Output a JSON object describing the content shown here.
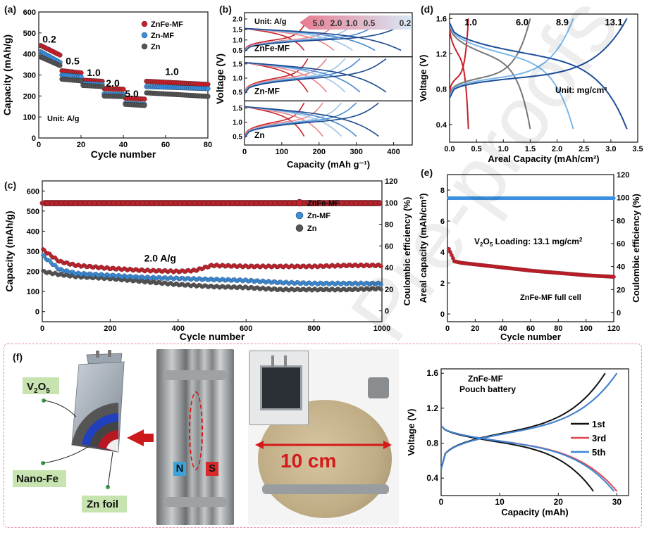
{
  "panels": {
    "a": {
      "letter": "(a)",
      "chart_data": {
        "type": "scatter",
        "xlabel": "Cycle number",
        "ylabel": "Capacity (mAh/g)",
        "xlim": [
          0,
          80
        ],
        "ylim": [
          0,
          600
        ],
        "xticks": [
          0,
          20,
          40,
          60,
          80
        ],
        "yticks": [
          0,
          100,
          200,
          300,
          400,
          500,
          600
        ],
        "unit_note": "Unit: A/g",
        "rate_labels": [
          {
            "text": "0.2",
            "x": 5,
            "y": 455
          },
          {
            "text": "0.5",
            "x": 16,
            "y": 350
          },
          {
            "text": "1.0",
            "x": 26,
            "y": 295
          },
          {
            "text": "2.0",
            "x": 35,
            "y": 245
          },
          {
            "text": "5.0",
            "x": 44,
            "y": 195
          },
          {
            "text": "1.0",
            "x": 63,
            "y": 300
          }
        ],
        "series": [
          {
            "name": "ZnFe-MF",
            "color": "#c8202a",
            "segments": [
              {
                "x0": 1,
                "x1": 10,
                "y0": 440,
                "y1": 395
              },
              {
                "x0": 11,
                "x1": 20,
                "y0": 320,
                "y1": 310
              },
              {
                "x0": 21,
                "x1": 30,
                "y0": 275,
                "y1": 270
              },
              {
                "x0": 31,
                "x1": 40,
                "y0": 235,
                "y1": 232
              },
              {
                "x0": 41,
                "x1": 50,
                "y0": 190,
                "y1": 185
              },
              {
                "x0": 51,
                "x1": 80,
                "y0": 270,
                "y1": 255
              }
            ]
          },
          {
            "name": "Zn-MF",
            "color": "#3a8fe0",
            "segments": [
              {
                "x0": 1,
                "x1": 10,
                "y0": 410,
                "y1": 360
              },
              {
                "x0": 11,
                "x1": 20,
                "y0": 300,
                "y1": 292
              },
              {
                "x0": 21,
                "x1": 30,
                "y0": 260,
                "y1": 255
              },
              {
                "x0": 31,
                "x1": 40,
                "y0": 210,
                "y1": 207
              },
              {
                "x0": 41,
                "x1": 50,
                "y0": 165,
                "y1": 160
              },
              {
                "x0": 51,
                "x1": 80,
                "y0": 245,
                "y1": 235
              }
            ]
          },
          {
            "name": "Zn",
            "color": "#555555",
            "segments": [
              {
                "x0": 1,
                "x1": 10,
                "y0": 385,
                "y1": 345
              },
              {
                "x0": 11,
                "x1": 20,
                "y0": 280,
                "y1": 272
              },
              {
                "x0": 21,
                "x1": 30,
                "y0": 250,
                "y1": 245
              },
              {
                "x0": 31,
                "x1": 40,
                "y0": 200,
                "y1": 197
              },
              {
                "x0": 41,
                "x1": 50,
                "y0": 160,
                "y1": 155
              },
              {
                "x0": 51,
                "x1": 80,
                "y0": 215,
                "y1": 198
              }
            ]
          }
        ]
      }
    },
    "b": {
      "letter": "(b)",
      "chart_data": {
        "type": "line",
        "xlabel": "Capacity (mAh g⁻¹)",
        "ylabel": "Voltage (V)",
        "xlim": [
          0,
          450
        ],
        "ylim": [
          0.2,
          2.3
        ],
        "xticks": [
          0,
          100,
          200,
          300,
          400
        ],
        "yticks_top": [
          0.5,
          1.0,
          1.5,
          2.0
        ],
        "yticks_mid": [
          0.5,
          1.0,
          1.5
        ],
        "yticks_bot": [
          0.5,
          1.0,
          1.5
        ],
        "unit_note": "Unit: A/g",
        "rates": [
          "5.0",
          "2.0",
          "1.0",
          "0.5",
          "0.2"
        ],
        "subplots": [
          {
            "name": "ZnFe-MF",
            "caps": [
              160,
              240,
              290,
              350,
              420
            ]
          },
          {
            "name": "Zn-MF",
            "caps": [
              170,
              220,
              270,
              310,
              380
            ]
          },
          {
            "name": "Zn",
            "caps": [
              160,
              210,
              260,
              300,
              360
            ]
          }
        ],
        "rate_colors": [
          "#c8202a",
          "#e8868a",
          "#9fc4e6",
          "#4a8ad0",
          "#1c4a90"
        ]
      }
    },
    "c": {
      "letter": "(c)",
      "chart_data": {
        "type": "scatter",
        "xlabel": "Cycle number",
        "ylabel": "Capacity (mAh/g)",
        "y2label": "Coulombic efficiency (%)",
        "xlim": [
          0,
          1000
        ],
        "ylim": [
          -50,
          650
        ],
        "y2lim": [
          -10,
          120
        ],
        "xticks": [
          0,
          200,
          400,
          600,
          800,
          1000
        ],
        "yticks": [
          0,
          100,
          200,
          300,
          400,
          500,
          600
        ],
        "y2ticks": [
          0,
          20,
          40,
          60,
          80,
          100,
          120
        ],
        "annotation": "2.0 A/g",
        "efficiency": 99.5,
        "series": [
          {
            "name": "ZnFe-MF",
            "color": "#c8202a",
            "points": [
              [
                0,
                310
              ],
              [
                50,
                250
              ],
              [
                100,
                230
              ],
              [
                200,
                215
              ],
              [
                300,
                205
              ],
              [
                400,
                200
              ],
              [
                450,
                205
              ],
              [
                500,
                230
              ],
              [
                600,
                225
              ],
              [
                700,
                225
              ],
              [
                800,
                225
              ],
              [
                900,
                230
              ],
              [
                1000,
                230
              ]
            ]
          },
          {
            "name": "Zn-MF",
            "color": "#3a8fe0",
            "points": [
              [
                0,
                280
              ],
              [
                50,
                210
              ],
              [
                100,
                190
              ],
              [
                200,
                180
              ],
              [
                300,
                170
              ],
              [
                400,
                165
              ],
              [
                500,
                160
              ],
              [
                600,
                155
              ],
              [
                700,
                145
              ],
              [
                800,
                140
              ],
              [
                900,
                140
              ],
              [
                1000,
                140
              ]
            ]
          },
          {
            "name": "Zn",
            "color": "#555555",
            "points": [
              [
                0,
                200
              ],
              [
                50,
                185
              ],
              [
                100,
                175
              ],
              [
                200,
                165
              ],
              [
                300,
                150
              ],
              [
                400,
                135
              ],
              [
                500,
                125
              ],
              [
                600,
                120
              ],
              [
                700,
                110
              ],
              [
                800,
                110
              ],
              [
                900,
                110
              ],
              [
                1000,
                115
              ]
            ]
          }
        ]
      }
    },
    "d": {
      "letter": "(d)",
      "chart_data": {
        "type": "line",
        "xlabel": "Areal Capacity (mAh/cm²)",
        "ylabel": "Voltage (V)",
        "xlim": [
          0,
          3.5
        ],
        "ylim": [
          0.2,
          1.65
        ],
        "xticks": [
          0.0,
          0.5,
          1.0,
          1.5,
          2.0,
          2.5,
          3.0,
          3.5
        ],
        "yticks": [
          0.4,
          0.8,
          1.2,
          1.6
        ],
        "unit_note": "Unit: mg/cm²",
        "series": [
          {
            "name": "1.0",
            "color": "#c8202a",
            "cap": 0.35
          },
          {
            "name": "6.0",
            "color": "#777777",
            "cap": 1.5
          },
          {
            "name": "8.9",
            "color": "#7ab8ea",
            "cap": 2.3
          },
          {
            "name": "13.1",
            "color": "#1f4e9a",
            "cap": 3.3
          }
        ]
      }
    },
    "e": {
      "letter": "(e)",
      "chart_data": {
        "type": "scatter",
        "xlabel": "Cycle number",
        "ylabel": "Areal capacity (mAh/cm²)",
        "y2label": "Coulombic efficiency (%)",
        "xlim": [
          0,
          120
        ],
        "ylim": [
          -0.5,
          9
        ],
        "y2lim": [
          -8,
          120
        ],
        "xticks": [
          0,
          20,
          40,
          60,
          80,
          100,
          120
        ],
        "yticks": [
          0,
          2,
          4,
          6,
          8
        ],
        "y2ticks": [
          0,
          20,
          40,
          60,
          80,
          100,
          120
        ],
        "loading_prefix": "V",
        "loading_sub": "2",
        "loading_mid": "O",
        "loading_sub2": "5",
        "loading_suffix": " Loading: 13.1 mg/cm",
        "loading_sup": "2",
        "cell_note": "ZnFe-MF full cell",
        "efficiency": 99.5,
        "capacity_points": [
          [
            1,
            4.2
          ],
          [
            2,
            4.0
          ],
          [
            5,
            3.4
          ],
          [
            10,
            3.3
          ],
          [
            20,
            3.2
          ],
          [
            40,
            3.0
          ],
          [
            60,
            2.8
          ],
          [
            80,
            2.65
          ],
          [
            100,
            2.5
          ],
          [
            120,
            2.4
          ]
        ]
      }
    },
    "f": {
      "letter": "(f)",
      "labels": {
        "v2o5_pre": "V",
        "v2o5_sub1": "2",
        "v2o5_mid": "O",
        "v2o5_sub2": "5",
        "nano_fe": "Nano-Fe",
        "zn_foil": "Zn foil",
        "n_pole": "N",
        "s_pole": "S",
        "size": "10 cm"
      },
      "chart_data": {
        "type": "line",
        "title": "ZnFe-MF",
        "subtitle": "Pouch battery",
        "xlabel": "Capacity (mAh)",
        "ylabel": "Voltage (V)",
        "xlim": [
          0,
          32
        ],
        "ylim": [
          0.2,
          1.65
        ],
        "xticks": [
          0,
          10,
          20,
          30
        ],
        "yticks": [
          0.4,
          0.8,
          1.2,
          1.6
        ],
        "series": [
          {
            "name": "1st",
            "color": "#111111",
            "charge_cap": 28,
            "discharge_cap": 26
          },
          {
            "name": "3rd",
            "color": "#e04850",
            "charge_cap": 30,
            "discharge_cap": 30
          },
          {
            "name": "5th",
            "color": "#3a86d8",
            "charge_cap": 30,
            "discharge_cap": 29.5
          }
        ]
      }
    }
  },
  "watermark": "Pre-proofs"
}
